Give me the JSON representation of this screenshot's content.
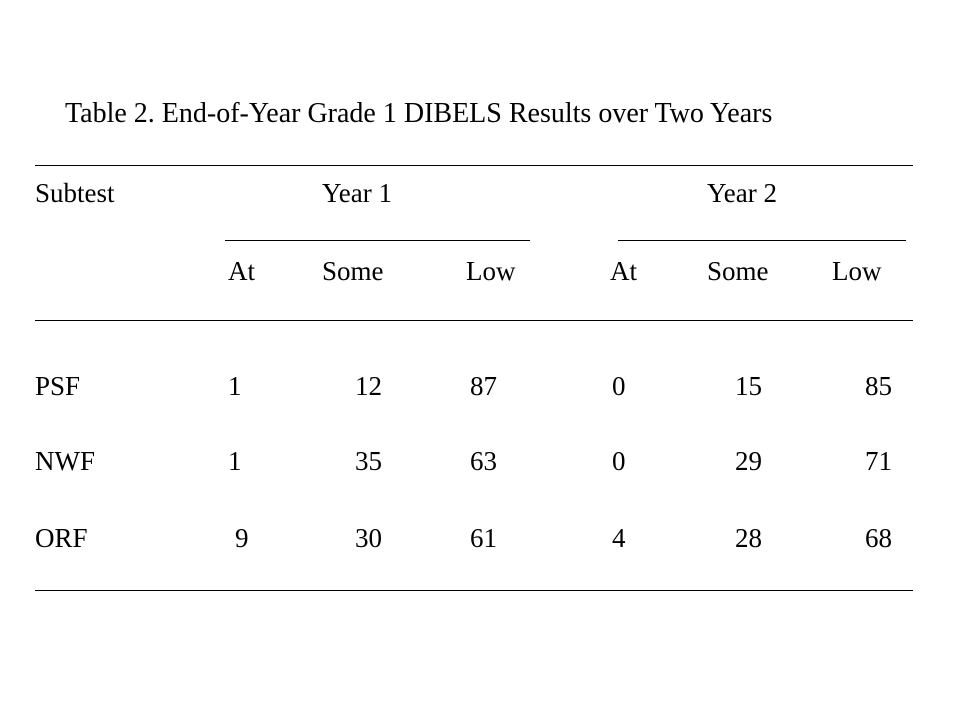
{
  "table": {
    "caption": "Table 2. End-of-Year Grade 1 DIBELS Results over Two Years",
    "header": {
      "subtest_label": "Subtest",
      "year1_label": "Year 1",
      "year2_label": "Year 2",
      "subcolumns": [
        "At",
        "Some",
        "Low"
      ]
    },
    "rows": [
      {
        "subtest": "PSF",
        "year1": [
          "1",
          "12",
          "87"
        ],
        "year2": [
          "0",
          "15",
          "85"
        ]
      },
      {
        "subtest": "NWF",
        "year1": [
          "1",
          "35",
          "63"
        ],
        "year2": [
          "0",
          "29",
          "71"
        ]
      },
      {
        "subtest": "ORF",
        "year1": [
          "9",
          "30",
          "61"
        ],
        "year2": [
          "4",
          "28",
          "68"
        ]
      }
    ]
  }
}
